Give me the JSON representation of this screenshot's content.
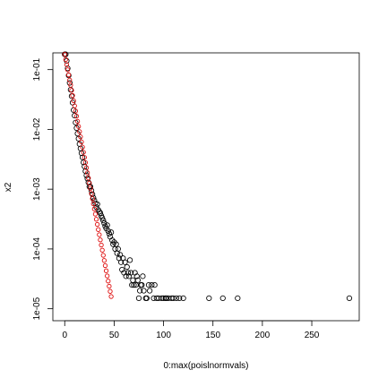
{
  "chart_data": {
    "type": "scatter",
    "title": "",
    "xlabel": "0:max(poislnormvals)",
    "ylabel": "x2",
    "xlim": [
      -12,
      298
    ],
    "ylim_log10": [
      -5.2,
      -0.72
    ],
    "y_log_scale": true,
    "grid": false,
    "legend": "none",
    "x_ticks": [
      0,
      50,
      100,
      150,
      200,
      250
    ],
    "y_ticks": [
      {
        "value": 1e-05,
        "label": "1e-05"
      },
      {
        "value": 0.0001,
        "label": "1e-04"
      },
      {
        "value": 0.001,
        "label": "1e-03"
      },
      {
        "value": 0.01,
        "label": "1e-02"
      },
      {
        "value": 0.1,
        "label": "1e-01"
      }
    ],
    "series": [
      {
        "color": "#000000",
        "marker": "open-circle",
        "points": [
          [
            0,
            0.18
          ],
          [
            1,
            0.18
          ],
          [
            2,
            0.14
          ],
          [
            3,
            0.105
          ],
          [
            4,
            0.08
          ],
          [
            5,
            0.06
          ],
          [
            6,
            0.046
          ],
          [
            7,
            0.036
          ],
          [
            8,
            0.028
          ],
          [
            9,
            0.021
          ],
          [
            10,
            0.017
          ],
          [
            11,
            0.013
          ],
          [
            12,
            0.0105
          ],
          [
            13,
            0.0085
          ],
          [
            14,
            0.007
          ],
          [
            15,
            0.0057
          ],
          [
            16,
            0.0048
          ],
          [
            17,
            0.004
          ],
          [
            18,
            0.0034
          ],
          [
            19,
            0.0028
          ],
          [
            20,
            0.0024
          ],
          [
            21,
            0.002
          ],
          [
            22,
            0.0017
          ],
          [
            23,
            0.0015
          ],
          [
            24,
            0.0013
          ],
          [
            25,
            0.0011
          ],
          [
            26,
            0.0011
          ],
          [
            27,
            0.00095
          ],
          [
            28,
            0.00082
          ],
          [
            29,
            0.00072
          ],
          [
            30,
            0.00065
          ],
          [
            31,
            0.00058
          ],
          [
            32,
            0.0005
          ],
          [
            33,
            0.00056
          ],
          [
            34,
            0.00045
          ],
          [
            35,
            0.00042
          ],
          [
            36,
            0.0004
          ],
          [
            37,
            0.00036
          ],
          [
            38,
            0.00033
          ],
          [
            39,
            0.0003
          ],
          [
            40,
            0.00027
          ],
          [
            41,
            0.00024
          ],
          [
            42,
            0.00022
          ],
          [
            43,
            0.00025
          ],
          [
            44,
            0.0002
          ],
          [
            45,
            0.00018
          ],
          [
            46,
            0.00016
          ],
          [
            47,
            0.00019
          ],
          [
            48,
            0.00014
          ],
          [
            49,
            0.00012
          ],
          [
            50,
            0.00013
          ],
          [
            51,
            0.0001
          ],
          [
            52,
            0.00012
          ],
          [
            53,
            8.5e-05
          ],
          [
            54,
            0.0001
          ],
          [
            55,
            7e-05
          ],
          [
            56,
            8e-05
          ],
          [
            57,
            6e-05
          ],
          [
            58,
            4.5e-05
          ],
          [
            59,
            7e-05
          ],
          [
            60,
            4e-05
          ],
          [
            61,
            6e-05
          ],
          [
            62,
            3.5e-05
          ],
          [
            63,
            5e-05
          ],
          [
            64,
            4e-05
          ],
          [
            65,
            3.5e-05
          ],
          [
            66,
            6.5e-05
          ],
          [
            67,
            4e-05
          ],
          [
            68,
            2.5e-05
          ],
          [
            69,
            3e-05
          ],
          [
            70,
            2.5e-05
          ],
          [
            71,
            4e-05
          ],
          [
            72,
            2.5e-05
          ],
          [
            73,
            3.5e-05
          ],
          [
            74,
            3e-05
          ],
          [
            75,
            1.5e-05
          ],
          [
            76,
            2e-05
          ],
          [
            77,
            2.5e-05
          ],
          [
            78,
            2.5e-05
          ],
          [
            79,
            3.5e-05
          ],
          [
            80,
            2e-05
          ],
          [
            82,
            1.5e-05
          ],
          [
            83,
            1.5e-05
          ],
          [
            85,
            2.5e-05
          ],
          [
            86,
            2e-05
          ],
          [
            88,
            2.5e-05
          ],
          [
            90,
            1.5e-05
          ],
          [
            91,
            2.5e-05
          ],
          [
            93,
            1.5e-05
          ],
          [
            95,
            1.5e-05
          ],
          [
            98,
            1.5e-05
          ],
          [
            100,
            1.5e-05
          ],
          [
            102,
            1.5e-05
          ],
          [
            103,
            1.5e-05
          ],
          [
            105,
            1.5e-05
          ],
          [
            108,
            1.5e-05
          ],
          [
            110,
            1.5e-05
          ],
          [
            113,
            1.5e-05
          ],
          [
            116,
            1.5e-05
          ],
          [
            120,
            1.5e-05
          ],
          [
            146,
            1.5e-05
          ],
          [
            160,
            1.5e-05
          ],
          [
            175,
            1.5e-05
          ],
          [
            288,
            1.5e-05
          ]
        ]
      },
      {
        "color": "#dd0000",
        "marker": "open-circle",
        "poisson_mean": 1.7,
        "x_range": [
          0,
          47
        ],
        "y0": 0.18,
        "decay_per_unit": 0.82
      }
    ]
  }
}
